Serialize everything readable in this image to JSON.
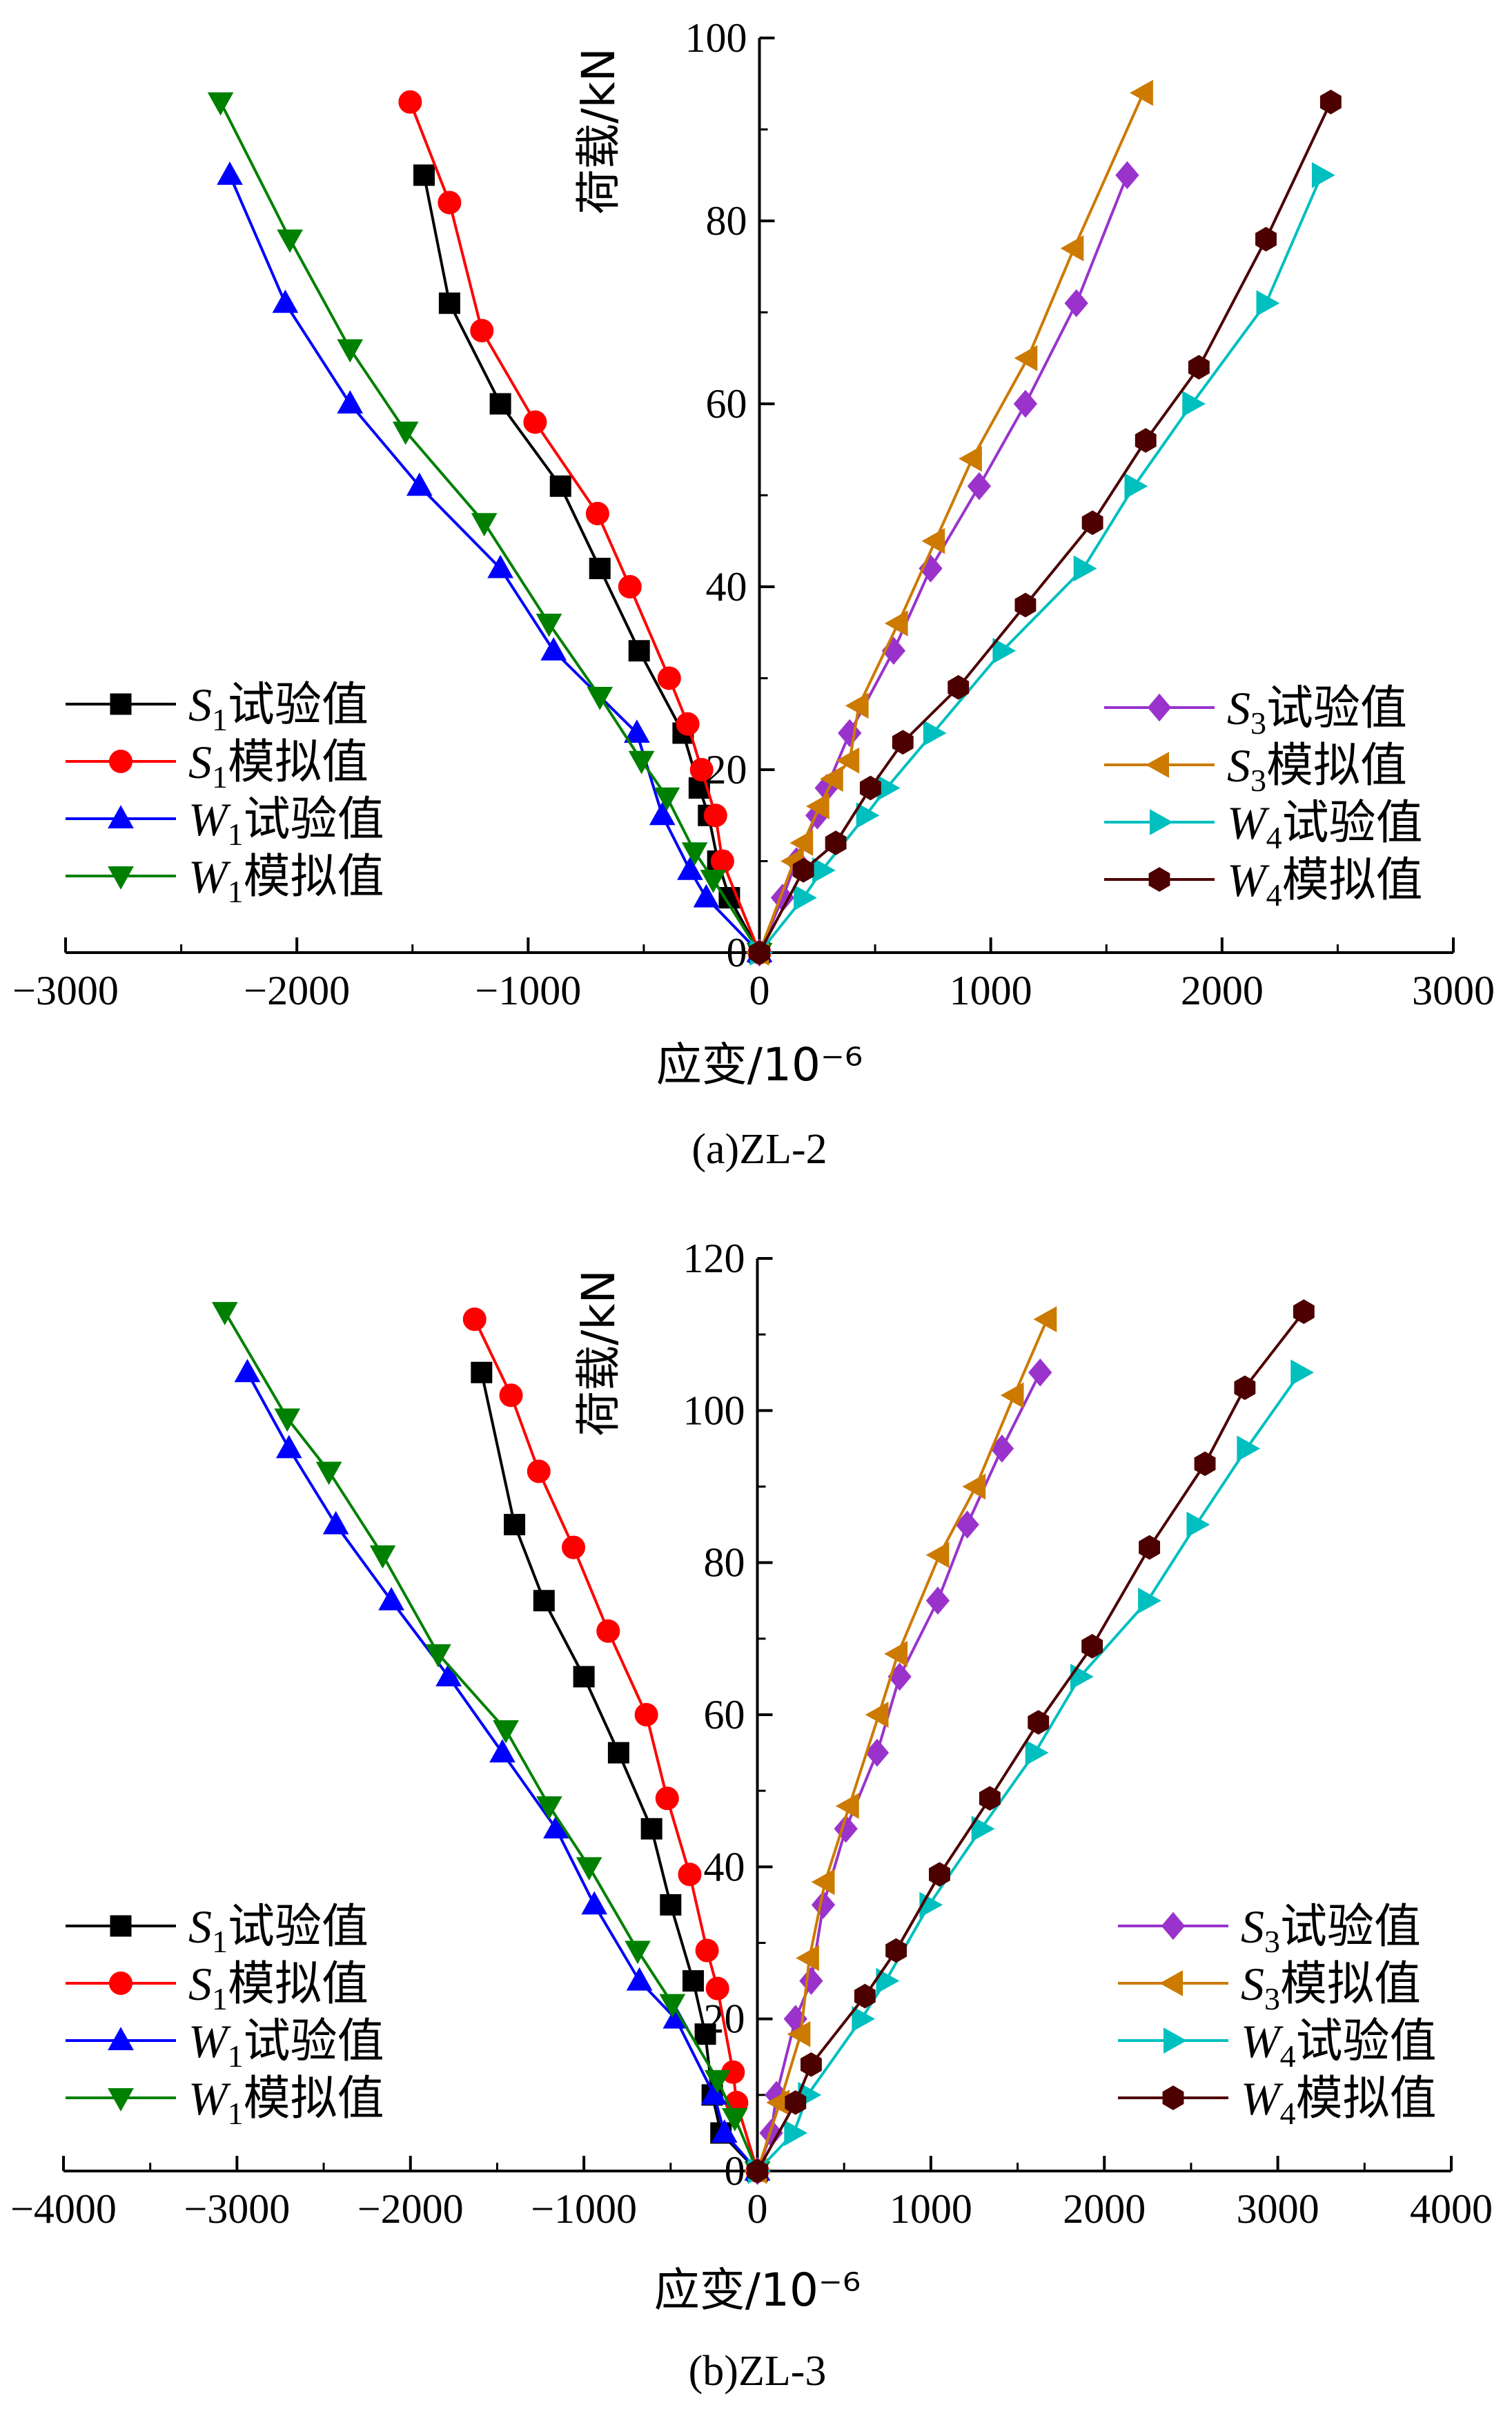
{
  "colors": {
    "S1_test": "#000000",
    "S1_sim": "#ff0000",
    "W1_test": "#0000ff",
    "W1_sim": "#008000",
    "S3_test": "#9933cc",
    "S3_sim": "#cc7a00",
    "W4_test": "#00bfbf",
    "W4_sim": "#4d0000"
  },
  "chart_data": [
    {
      "type": "line",
      "caption": "(a)ZL-2",
      "xlabel": "应变/10⁻⁶",
      "ylabel": "荷载/kN",
      "xlim": [
        -3000,
        3000
      ],
      "ylim": [
        0,
        100
      ],
      "xticks": [
        "−3000",
        "−2000",
        "−1000",
        "0",
        "1000",
        "2000",
        "3000"
      ],
      "yticks": [
        "0",
        "20",
        "40",
        "60",
        "80",
        "100"
      ],
      "legend_left": "left",
      "legend_right": "right",
      "series": [
        {
          "name": "S1试验值",
          "var": "S",
          "sub": "1",
          "suffix": "试验值",
          "color_key": "S1_test",
          "marker": "square",
          "side": "left",
          "x": [
            0,
            -130,
            -180,
            -220,
            -260,
            -330,
            -520,
            -690,
            -860,
            -1120,
            -1340,
            -1450
          ],
          "y": [
            0,
            6,
            10,
            15,
            18,
            24,
            33,
            42,
            51,
            60,
            71,
            85
          ]
        },
        {
          "name": "S1模拟值",
          "var": "S",
          "sub": "1",
          "suffix": "模拟值",
          "color_key": "S1_sim",
          "marker": "circle",
          "side": "left",
          "x": [
            0,
            -160,
            -190,
            -250,
            -310,
            -390,
            -560,
            -700,
            -970,
            -1200,
            -1340,
            -1510
          ],
          "y": [
            0,
            10,
            15,
            20,
            25,
            30,
            40,
            48,
            58,
            68,
            82,
            93
          ]
        },
        {
          "name": "W1试验值",
          "var": "W",
          "sub": "1",
          "suffix": "试验值",
          "color_key": "W1_test",
          "marker": "triangle-up",
          "side": "left",
          "x": [
            0,
            -230,
            -300,
            -420,
            -530,
            -890,
            -1120,
            -1470,
            -1770,
            -2050,
            -2290
          ],
          "y": [
            0,
            6,
            9,
            15,
            24,
            33,
            42,
            51,
            60,
            71,
            85
          ]
        },
        {
          "name": "W1模拟值",
          "var": "W",
          "sub": "1",
          "suffix": "模拟值",
          "color_key": "W1_sim",
          "marker": "triangle-down",
          "side": "left",
          "x": [
            0,
            -200,
            -280,
            -400,
            -510,
            -690,
            -910,
            -1190,
            -1530,
            -1770,
            -2030,
            -2330
          ],
          "y": [
            0,
            8,
            11,
            17,
            21,
            28,
            36,
            47,
            57,
            66,
            78,
            93
          ]
        },
        {
          "name": "S3试验值",
          "var": "S",
          "sub": "3",
          "suffix": "试验值",
          "color_key": "S3_test",
          "marker": "diamond",
          "side": "right",
          "x": [
            0,
            100,
            160,
            250,
            290,
            390,
            580,
            740,
            950,
            1150,
            1370,
            1590
          ],
          "y": [
            0,
            6,
            10,
            15,
            18,
            24,
            33,
            42,
            51,
            60,
            71,
            85
          ]
        },
        {
          "name": "S3模拟值",
          "var": "S",
          "sub": "3",
          "suffix": "模拟值",
          "color_key": "S3_sim",
          "marker": "triangle-left",
          "side": "right",
          "x": [
            0,
            150,
            190,
            260,
            320,
            390,
            430,
            600,
            760,
            920,
            1160,
            1360,
            1660
          ],
          "y": [
            0,
            10,
            12,
            16,
            19,
            21,
            27,
            36,
            45,
            54,
            65,
            77,
            94
          ]
        },
        {
          "name": "W4试验值",
          "var": "W",
          "sub": "4",
          "suffix": "试验值",
          "color_key": "W4_test",
          "marker": "triangle-right",
          "side": "right",
          "x": [
            0,
            190,
            270,
            460,
            550,
            750,
            1050,
            1400,
            1620,
            1870,
            2190,
            2430
          ],
          "y": [
            0,
            6,
            9,
            15,
            18,
            24,
            33,
            42,
            51,
            60,
            71,
            85
          ]
        },
        {
          "name": "W4模拟值",
          "var": "W",
          "sub": "4",
          "suffix": "模拟值",
          "color_key": "W4_sim",
          "marker": "hexagon",
          "side": "right",
          "x": [
            0,
            190,
            330,
            480,
            620,
            860,
            1150,
            1440,
            1670,
            1900,
            2190,
            2470
          ],
          "y": [
            0,
            9,
            12,
            18,
            23,
            29,
            38,
            47,
            56,
            64,
            78,
            93
          ]
        }
      ]
    },
    {
      "type": "line",
      "caption": "(b)ZL-3",
      "xlabel": "应变/10⁻⁶",
      "ylabel": "荷载/kN",
      "xlim": [
        -4000,
        4000
      ],
      "ylim": [
        0,
        120
      ],
      "xticks": [
        "−4000",
        "−3000",
        "−2000",
        "−1000",
        "0",
        "1000",
        "2000",
        "3000",
        "4000"
      ],
      "yticks": [
        "0",
        "20",
        "40",
        "60",
        "80",
        "100",
        "120"
      ],
      "series": [
        {
          "name": "S1试验值",
          "var": "S",
          "sub": "1",
          "suffix": "试验值",
          "color_key": "S1_test",
          "marker": "square",
          "side": "left",
          "x": [
            0,
            -210,
            -260,
            -300,
            -370,
            -500,
            -610,
            -800,
            -1000,
            -1230,
            -1400,
            -1590
          ],
          "y": [
            0,
            5,
            10,
            18,
            25,
            35,
            45,
            55,
            65,
            75,
            85,
            105
          ]
        },
        {
          "name": "S1模拟值",
          "var": "S",
          "sub": "1",
          "suffix": "模拟值",
          "color_key": "S1_sim",
          "marker": "circle",
          "side": "left",
          "x": [
            0,
            -120,
            -140,
            -230,
            -290,
            -390,
            -520,
            -640,
            -860,
            -1060,
            -1260,
            -1420,
            -1630
          ],
          "y": [
            0,
            9,
            13,
            24,
            29,
            39,
            49,
            60,
            71,
            82,
            92,
            102,
            112
          ]
        },
        {
          "name": "W1试验值",
          "var": "W",
          "sub": "1",
          "suffix": "试验值",
          "color_key": "W1_test",
          "marker": "triangle-up",
          "side": "left",
          "x": [
            0,
            -190,
            -250,
            -470,
            -680,
            -940,
            -1160,
            -1470,
            -1780,
            -2110,
            -2430,
            -2700,
            -2940
          ],
          "y": [
            0,
            5,
            10,
            20,
            25,
            35,
            45,
            55,
            65,
            75,
            85,
            95,
            105
          ]
        },
        {
          "name": "W1模拟值",
          "var": "W",
          "sub": "1",
          "suffix": "模拟值",
          "color_key": "W1_sim",
          "marker": "triangle-down",
          "side": "left",
          "x": [
            0,
            -130,
            -230,
            -490,
            -690,
            -970,
            -1200,
            -1450,
            -1840,
            -2160,
            -2470,
            -2710,
            -3070
          ],
          "y": [
            0,
            7,
            12,
            22,
            29,
            40,
            48,
            58,
            68,
            81,
            92,
            99,
            113
          ]
        },
        {
          "name": "S3试验值",
          "var": "S",
          "sub": "3",
          "suffix": "试验值",
          "color_key": "S3_test",
          "marker": "diamond",
          "side": "right",
          "x": [
            0,
            80,
            110,
            220,
            310,
            380,
            510,
            690,
            820,
            1040,
            1210,
            1410,
            1630
          ],
          "y": [
            0,
            5,
            10,
            20,
            25,
            35,
            45,
            55,
            65,
            75,
            85,
            95,
            105
          ]
        },
        {
          "name": "S3模拟值",
          "var": "S",
          "sub": "3",
          "suffix": "模拟值",
          "color_key": "S3_sim",
          "marker": "triangle-left",
          "side": "right",
          "x": [
            0,
            130,
            250,
            300,
            390,
            530,
            700,
            810,
            1050,
            1260,
            1480,
            1670
          ],
          "y": [
            0,
            9,
            18,
            28,
            38,
            48,
            60,
            68,
            81,
            90,
            102,
            112
          ]
        },
        {
          "name": "W4试验值",
          "var": "W",
          "sub": "4",
          "suffix": "试验值",
          "color_key": "W4_test",
          "marker": "triangle-right",
          "side": "right",
          "x": [
            0,
            210,
            290,
            600,
            740,
            990,
            1290,
            1600,
            1860,
            2250,
            2530,
            2820,
            3130
          ],
          "y": [
            0,
            5,
            10,
            20,
            25,
            35,
            45,
            55,
            65,
            75,
            85,
            95,
            105
          ]
        },
        {
          "name": "W4模拟值",
          "var": "W",
          "sub": "4",
          "suffix": "模拟值",
          "color_key": "W4_sim",
          "marker": "hexagon",
          "side": "right",
          "x": [
            0,
            220,
            310,
            620,
            800,
            1050,
            1340,
            1620,
            1930,
            2260,
            2580,
            2810,
            3150
          ],
          "y": [
            0,
            9,
            14,
            23,
            29,
            39,
            49,
            59,
            69,
            82,
            93,
            103,
            113
          ]
        }
      ]
    }
  ]
}
